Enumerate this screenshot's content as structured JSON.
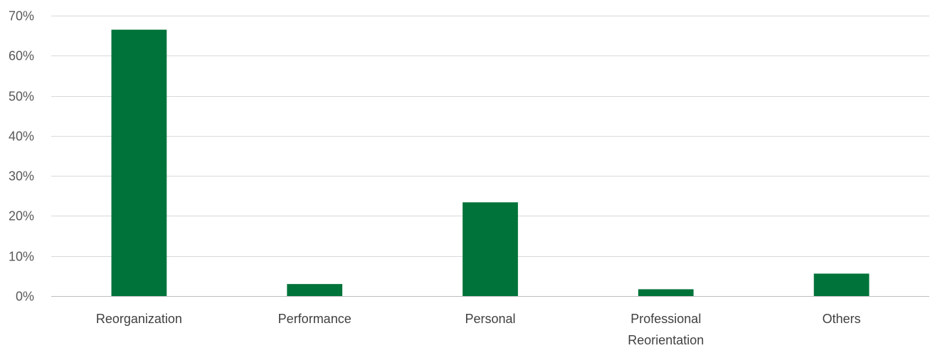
{
  "chart_data": {
    "type": "bar",
    "title": "",
    "xlabel": "",
    "ylabel": "",
    "categories": [
      [
        "Reorganization"
      ],
      [
        "Performance"
      ],
      [
        "Personal"
      ],
      [
        "Professional",
        "Reorientation"
      ],
      [
        "Others"
      ]
    ],
    "values": [
      0.665,
      0.03,
      0.234,
      0.017,
      0.056
    ],
    "ylim": [
      0,
      0.7
    ],
    "yticks": [
      {
        "value": 0.0,
        "label": "0%"
      },
      {
        "value": 0.1,
        "label": "10%"
      },
      {
        "value": 0.2,
        "label": "20%"
      },
      {
        "value": 0.3,
        "label": "30%"
      },
      {
        "value": 0.4,
        "label": "40%"
      },
      {
        "value": 0.5,
        "label": "50%"
      },
      {
        "value": 0.6,
        "label": "60%"
      },
      {
        "value": 0.7,
        "label": "70%"
      }
    ],
    "grid": true,
    "legend": "none",
    "colors": {
      "bar": "#00733A",
      "grid": "#D9D9D9",
      "axis": "#BFBFBF"
    }
  }
}
